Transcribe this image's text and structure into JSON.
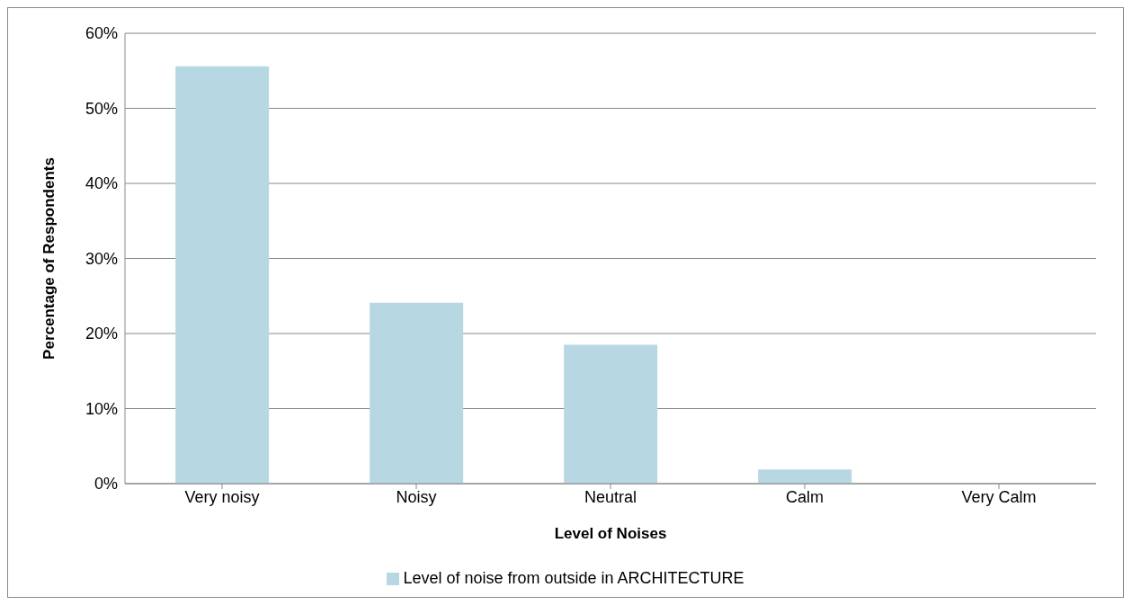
{
  "chart_data": {
    "type": "bar",
    "xlabel": "Level of Noises",
    "ylabel": "Percentage of Respondents",
    "categories": [
      "Very noisy",
      "Noisy",
      "Neutral",
      "Calm",
      "Very Calm"
    ],
    "series": [
      {
        "name": "Level of noise from outside in ARCHITECTURE",
        "color": "#b7d7e3",
        "values": [
          55.6,
          24.1,
          18.5,
          1.9,
          0
        ]
      }
    ],
    "ylim": [
      0,
      60
    ],
    "yticks": [
      {
        "value": 0,
        "label": "0%"
      },
      {
        "value": 10,
        "label": "10%"
      },
      {
        "value": 20,
        "label": "20%"
      },
      {
        "value": 30,
        "label": "30%"
      },
      {
        "value": 40,
        "label": "40%"
      },
      {
        "value": 50,
        "label": "50%"
      },
      {
        "value": 60,
        "label": "60%"
      }
    ],
    "grid": "y",
    "legend": "bottom"
  }
}
